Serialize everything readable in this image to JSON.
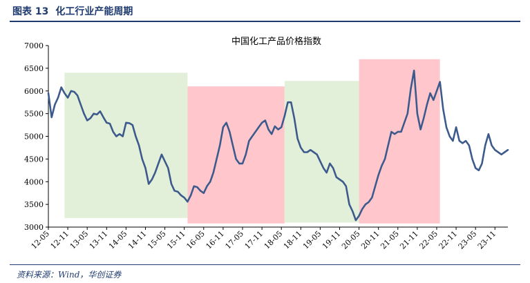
{
  "figure": {
    "number_label": "图表 13",
    "caption": "化工行业产能周期",
    "source": "资料来源：Wind，华创证券"
  },
  "chart_data": {
    "type": "line",
    "title": "中国化工产品价格指数",
    "xlabel": "",
    "ylabel": "",
    "ylim": [
      3000,
      7000
    ],
    "yticks": [
      3000,
      3500,
      4000,
      4500,
      5000,
      5500,
      6000,
      6500,
      7000
    ],
    "xticks": [
      "12-05",
      "12-11",
      "13-05",
      "13-11",
      "14-05",
      "14-11",
      "15-05",
      "15-11",
      "16-05",
      "16-11",
      "17-05",
      "17-11",
      "18-05",
      "18-11",
      "19-05",
      "19-11",
      "20-05",
      "20-11",
      "21-05",
      "21-11",
      "22-05",
      "22-11",
      "23-05",
      "23-11"
    ],
    "grid": false,
    "legend": "none",
    "line_color": "#3c5a8c",
    "shaded_periods": [
      {
        "phase": "down",
        "color": "#e2efd9",
        "start": "12-10",
        "end": "15-12",
        "ymin": 3200,
        "ymax": 6400
      },
      {
        "phase": "up",
        "color": "#ffc7cc",
        "start": "15-12",
        "end": "18-06",
        "ymin": 3080,
        "ymax": 6100
      },
      {
        "phase": "down",
        "color": "#e2efd9",
        "start": "18-06",
        "end": "20-05",
        "ymin": 3100,
        "ymax": 6220
      },
      {
        "phase": "up",
        "color": "#ffc7cc",
        "start": "20-05",
        "end": "22-06",
        "ymin": 3080,
        "ymax": 6700
      }
    ],
    "series": [
      {
        "points": [
          [
            "12-05",
            5950
          ],
          [
            "12-06",
            5420
          ],
          [
            "12-07",
            5700
          ],
          [
            "12-08",
            5850
          ],
          [
            "12-09",
            6080
          ],
          [
            "12-10",
            5950
          ],
          [
            "12-11",
            5850
          ],
          [
            "12-12",
            6000
          ],
          [
            "13-01",
            5980
          ],
          [
            "13-02",
            5900
          ],
          [
            "13-03",
            5700
          ],
          [
            "13-04",
            5500
          ],
          [
            "13-05",
            5350
          ],
          [
            "13-06",
            5400
          ],
          [
            "13-07",
            5500
          ],
          [
            "13-08",
            5480
          ],
          [
            "13-09",
            5550
          ],
          [
            "13-10",
            5420
          ],
          [
            "13-11",
            5300
          ],
          [
            "13-12",
            5280
          ],
          [
            "14-01",
            5100
          ],
          [
            "14-02",
            5000
          ],
          [
            "14-03",
            5050
          ],
          [
            "14-04",
            5000
          ],
          [
            "14-05",
            5300
          ],
          [
            "14-06",
            5290
          ],
          [
            "14-07",
            5250
          ],
          [
            "14-08",
            5000
          ],
          [
            "14-09",
            4800
          ],
          [
            "14-10",
            4500
          ],
          [
            "14-11",
            4300
          ],
          [
            "14-12",
            3950
          ],
          [
            "15-01",
            4050
          ],
          [
            "15-02",
            4200
          ],
          [
            "15-03",
            4400
          ],
          [
            "15-04",
            4600
          ],
          [
            "15-05",
            4450
          ],
          [
            "15-06",
            4300
          ],
          [
            "15-07",
            3950
          ],
          [
            "15-08",
            3800
          ],
          [
            "15-09",
            3780
          ],
          [
            "15-10",
            3700
          ],
          [
            "15-11",
            3650
          ],
          [
            "15-12",
            3560
          ],
          [
            "16-01",
            3700
          ],
          [
            "16-02",
            3900
          ],
          [
            "16-03",
            3880
          ],
          [
            "16-04",
            3800
          ],
          [
            "16-05",
            3750
          ],
          [
            "16-06",
            3900
          ],
          [
            "16-07",
            4000
          ],
          [
            "16-08",
            4200
          ],
          [
            "16-09",
            4500
          ],
          [
            "16-10",
            4800
          ],
          [
            "16-11",
            5200
          ],
          [
            "16-12",
            5300
          ],
          [
            "17-01",
            5100
          ],
          [
            "17-02",
            4800
          ],
          [
            "17-03",
            4500
          ],
          [
            "17-04",
            4400
          ],
          [
            "17-05",
            4400
          ],
          [
            "17-06",
            4600
          ],
          [
            "17-07",
            4900
          ],
          [
            "17-08",
            5000
          ],
          [
            "17-09",
            5100
          ],
          [
            "17-10",
            5200
          ],
          [
            "17-11",
            5300
          ],
          [
            "17-12",
            5350
          ],
          [
            "18-01",
            5150
          ],
          [
            "18-02",
            5050
          ],
          [
            "18-03",
            5220
          ],
          [
            "18-04",
            5150
          ],
          [
            "18-05",
            5200
          ],
          [
            "18-06",
            5450
          ],
          [
            "18-07",
            5750
          ],
          [
            "18-08",
            5750
          ],
          [
            "18-09",
            5400
          ],
          [
            "18-10",
            4950
          ],
          [
            "18-11",
            4750
          ],
          [
            "18-12",
            4650
          ],
          [
            "19-01",
            4650
          ],
          [
            "19-02",
            4700
          ],
          [
            "19-03",
            4650
          ],
          [
            "19-04",
            4600
          ],
          [
            "19-05",
            4450
          ],
          [
            "19-06",
            4300
          ],
          [
            "19-07",
            4200
          ],
          [
            "19-08",
            4400
          ],
          [
            "19-09",
            4300
          ],
          [
            "19-10",
            4100
          ],
          [
            "19-11",
            4050
          ],
          [
            "19-12",
            4000
          ],
          [
            "20-01",
            3900
          ],
          [
            "20-02",
            3500
          ],
          [
            "20-03",
            3350
          ],
          [
            "20-04",
            3150
          ],
          [
            "20-05",
            3250
          ],
          [
            "20-06",
            3400
          ],
          [
            "20-07",
            3500
          ],
          [
            "20-08",
            3550
          ],
          [
            "20-09",
            3650
          ],
          [
            "20-10",
            3900
          ],
          [
            "20-11",
            4150
          ],
          [
            "20-12",
            4350
          ],
          [
            "21-01",
            4500
          ],
          [
            "21-02",
            4800
          ],
          [
            "21-03",
            5100
          ],
          [
            "21-04",
            5050
          ],
          [
            "21-05",
            5100
          ],
          [
            "21-06",
            5100
          ],
          [
            "21-07",
            5300
          ],
          [
            "21-08",
            5500
          ],
          [
            "21-09",
            6050
          ],
          [
            "21-10",
            6450
          ],
          [
            "21-11",
            5500
          ],
          [
            "21-12",
            5150
          ],
          [
            "22-01",
            5400
          ],
          [
            "22-02",
            5700
          ],
          [
            "22-03",
            5950
          ],
          [
            "22-04",
            5800
          ],
          [
            "22-05",
            6000
          ],
          [
            "22-06",
            6200
          ],
          [
            "22-07",
            5600
          ],
          [
            "22-08",
            5200
          ],
          [
            "22-09",
            5000
          ],
          [
            "22-10",
            4900
          ],
          [
            "22-11",
            5200
          ],
          [
            "22-12",
            4900
          ],
          [
            "23-01",
            4850
          ],
          [
            "23-02",
            4900
          ],
          [
            "23-03",
            4800
          ],
          [
            "23-04",
            4500
          ],
          [
            "23-05",
            4300
          ],
          [
            "23-06",
            4250
          ],
          [
            "23-07",
            4400
          ],
          [
            "23-08",
            4800
          ],
          [
            "23-09",
            5050
          ],
          [
            "23-10",
            4800
          ],
          [
            "23-11",
            4700
          ],
          [
            "23-12",
            4650
          ],
          [
            "24-01",
            4600
          ],
          [
            "24-02",
            4650
          ],
          [
            "24-03",
            4700
          ]
        ]
      }
    ]
  }
}
